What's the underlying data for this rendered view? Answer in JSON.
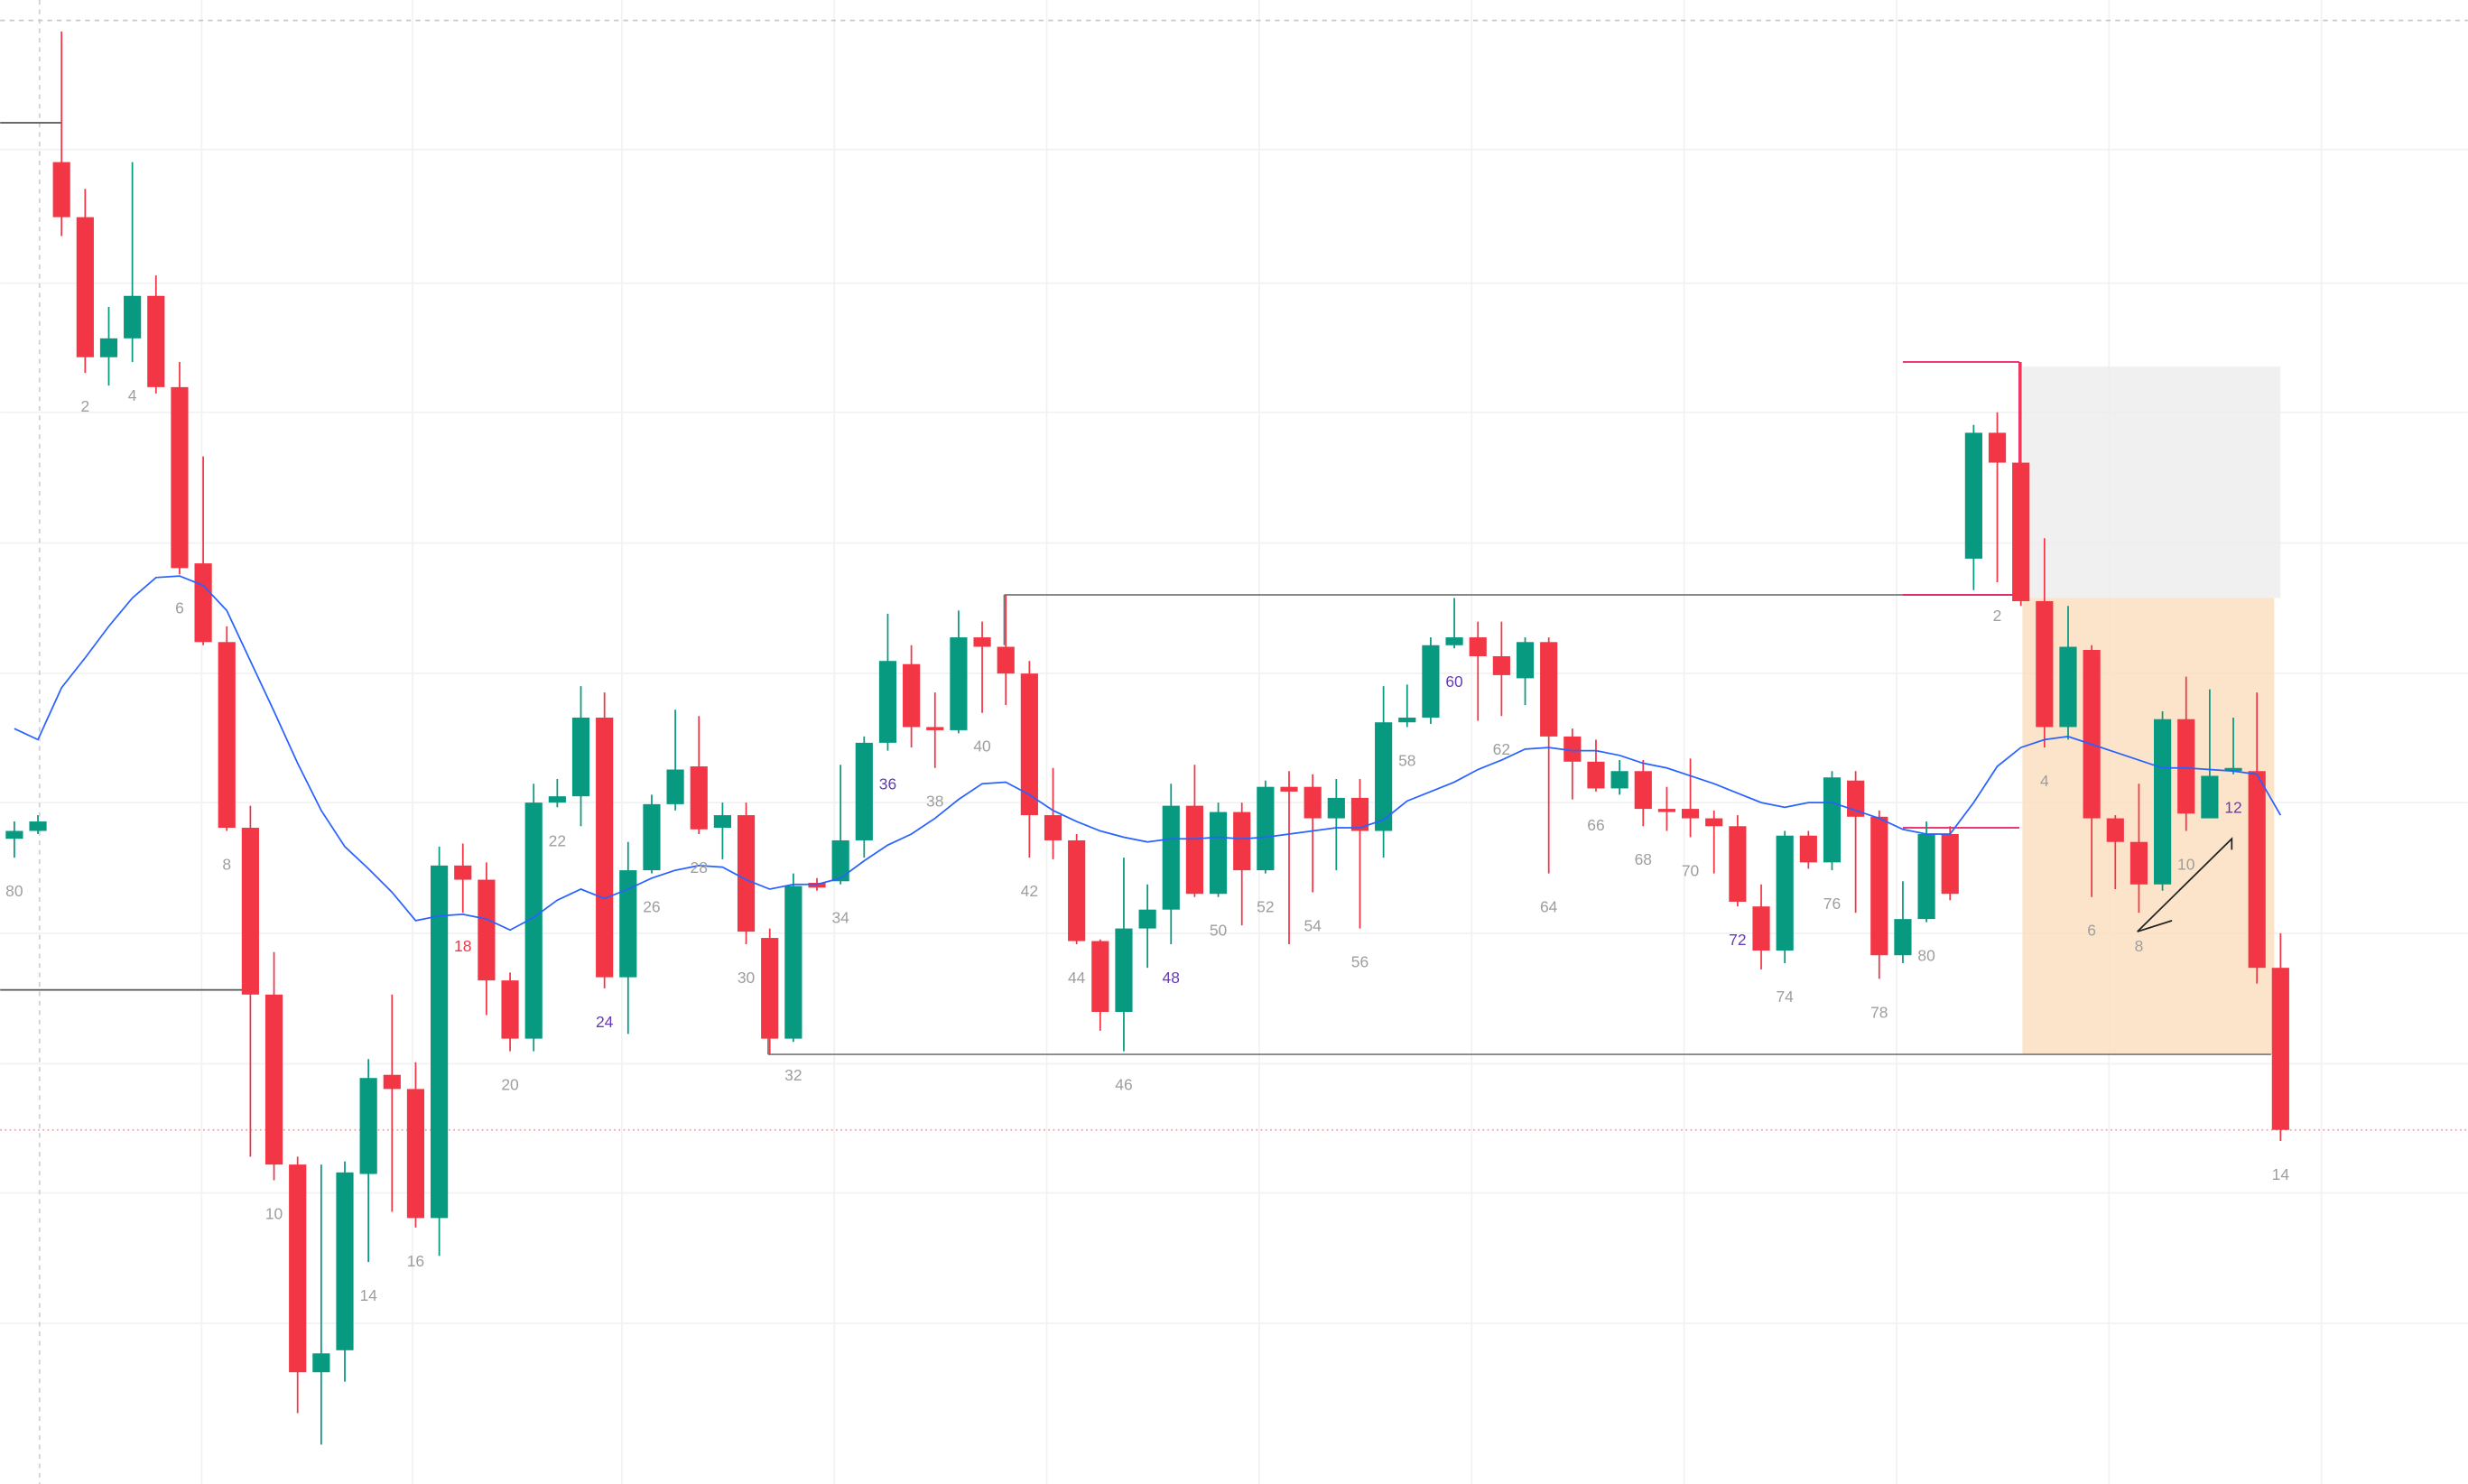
{
  "chart_data": {
    "type": "candlestick",
    "ylim": [
      0,
      943
    ],
    "up_color": "#089981",
    "down_color": "#f23645",
    "ma_color": "#2962ff",
    "label_color": "#9e9e9e",
    "open": [
      410,
      415,
      840,
      805,
      716,
      728,
      755,
      697,
      585,
      535,
      417,
      311,
      203,
      71,
      85,
      197,
      260,
      251,
      169,
      393,
      384,
      320,
      283,
      433,
      437,
      487,
      322,
      390,
      432,
      456,
      417,
      425,
      347,
      283,
      382,
      383,
      409,
      471,
      521,
      481,
      479,
      538,
      532,
      515,
      425,
      409,
      345,
      300,
      353,
      365,
      431,
      375,
      427,
      390,
      443,
      443,
      423,
      436,
      415,
      484,
      487,
      533,
      538,
      526,
      512,
      535,
      475,
      459,
      442,
      453,
      429,
      429,
      423,
      418,
      367,
      339,
      412,
      395,
      447,
      424,
      336,
      359,
      413,
      588,
      668,
      649,
      561,
      481,
      530,
      423,
      408,
      381,
      486,
      423,
      453,
      453,
      328
    ],
    "high": [
      421,
      425,
      923,
      823,
      748,
      840,
      768,
      713,
      653,
      545,
      431,
      338,
      208,
      203,
      205,
      270,
      311,
      268,
      405,
      407,
      395,
      325,
      445,
      448,
      507,
      503,
      408,
      438,
      492,
      488,
      433,
      433,
      353,
      388,
      385,
      457,
      475,
      553,
      533,
      503,
      555,
      548,
      565,
      523,
      455,
      413,
      346,
      398,
      381,
      445,
      457,
      433,
      433,
      447,
      453,
      451,
      448,
      448,
      507,
      508,
      538,
      563,
      548,
      548,
      538,
      538,
      480,
      473,
      460,
      460,
      443,
      461,
      428,
      425,
      381,
      415,
      415,
      453,
      453,
      428,
      383,
      421,
      418,
      673,
      681,
      713,
      601,
      558,
      533,
      425,
      445,
      491,
      513,
      505,
      487,
      503,
      350
    ],
    "low": [
      398,
      413,
      793,
      706,
      698,
      713,
      693,
      578,
      533,
      415,
      208,
      193,
      45,
      25,
      65,
      141,
      173,
      163,
      145,
      363,
      298,
      275,
      275,
      430,
      418,
      315,
      286,
      388,
      428,
      413,
      397,
      343,
      273,
      281,
      377,
      381,
      398,
      466,
      468,
      455,
      477,
      490,
      495,
      398,
      397,
      343,
      288,
      275,
      328,
      343,
      373,
      373,
      355,
      388,
      343,
      376,
      390,
      353,
      398,
      481,
      483,
      531,
      485,
      488,
      495,
      388,
      435,
      440,
      438,
      418,
      415,
      411,
      388,
      367,
      327,
      331,
      391,
      390,
      363,
      321,
      331,
      357,
      371,
      568,
      573,
      558,
      468,
      473,
      373,
      378,
      363,
      377,
      415,
      423,
      451,
      318,
      218
    ],
    "close": [
      415,
      421,
      805,
      716,
      728,
      755,
      697,
      582,
      535,
      417,
      311,
      203,
      71,
      83,
      198,
      258,
      251,
      169,
      393,
      384,
      320,
      283,
      433,
      437,
      487,
      322,
      390,
      432,
      454,
      416,
      425,
      351,
      283,
      380,
      379,
      409,
      471,
      523,
      481,
      479,
      538,
      532,
      515,
      425,
      409,
      345,
      300,
      353,
      365,
      431,
      375,
      427,
      390,
      443,
      440,
      423,
      436,
      415,
      484,
      487,
      533,
      538,
      526,
      514,
      535,
      475,
      459,
      442,
      453,
      429,
      427,
      423,
      418,
      370,
      339,
      412,
      395,
      449,
      424,
      336,
      359,
      413,
      375,
      668,
      649,
      561,
      481,
      532,
      423,
      408,
      381,
      486,
      426,
      450,
      455,
      328,
      225
    ],
    "ma": [
      480,
      473,
      506,
      525,
      545,
      563,
      576,
      577,
      571,
      555,
      523,
      491,
      458,
      428,
      405,
      391,
      376,
      358,
      361,
      362,
      359,
      352,
      360,
      371,
      378,
      372,
      378,
      385,
      390,
      393,
      392,
      384,
      378,
      381,
      381,
      385,
      396,
      406,
      413,
      423,
      435,
      445,
      446,
      438,
      428,
      421,
      415,
      411,
      408,
      410,
      410,
      411,
      410,
      411,
      413,
      415,
      417,
      417,
      422,
      434,
      440,
      446,
      454,
      460,
      467,
      468,
      466,
      466,
      463,
      458,
      455,
      450,
      445,
      439,
      433,
      430,
      433,
      433,
      428,
      423,
      416,
      413,
      413,
      433,
      456,
      468,
      473,
      475,
      470,
      465,
      460,
      455,
      455,
      454,
      453,
      451,
      425
    ],
    "bar_labels": [
      "80",
      null,
      null,
      "2",
      null,
      "4",
      null,
      "6",
      null,
      "8",
      null,
      "10",
      null,
      null,
      null,
      "14",
      null,
      "16",
      null,
      {
        "text": "18",
        "color": "#f23645"
      },
      null,
      "20",
      null,
      "22",
      null,
      {
        "text": "24",
        "color": "#673ab7"
      },
      null,
      "26",
      null,
      "28",
      null,
      "30",
      null,
      "32",
      null,
      "34",
      null,
      {
        "text": "36",
        "color": "#673ab7"
      },
      null,
      "38",
      null,
      "40",
      null,
      "42",
      null,
      "44",
      null,
      "46",
      null,
      {
        "text": "48",
        "color": "#673ab7"
      },
      null,
      "50",
      null,
      "52",
      null,
      "54",
      null,
      "56",
      null,
      "58",
      null,
      {
        "text": "60",
        "color": "#673ab7"
      },
      null,
      "62",
      null,
      "64",
      null,
      "66",
      null,
      "68",
      null,
      "70",
      null,
      {
        "text": "72",
        "color": "#673ab7"
      },
      null,
      "74",
      null,
      "76",
      null,
      "78",
      null,
      "80",
      null,
      null,
      "2",
      null,
      "4",
      null,
      "6",
      null,
      "8",
      null,
      "10",
      null,
      {
        "text": "12",
        "color": "#673ab7"
      },
      null,
      "14"
    ]
  }
}
